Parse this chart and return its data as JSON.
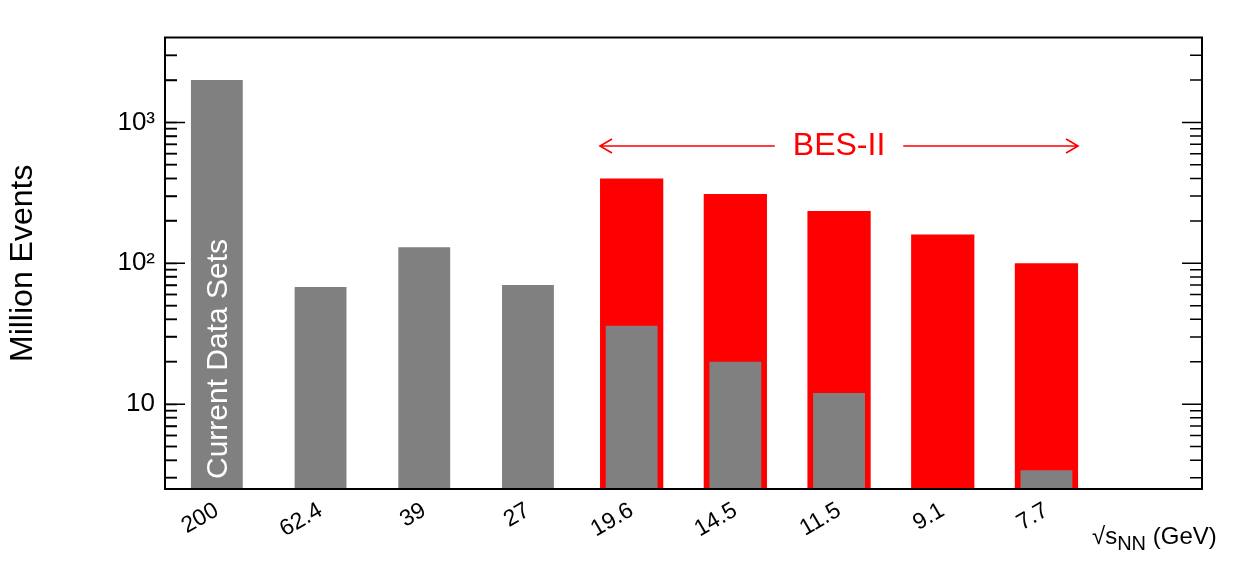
{
  "chart_data": {
    "type": "bar",
    "ylabel": "Million Events",
    "xlabel": "√s$_{NN}$ (GeV)",
    "categories": [
      "200",
      "62.4",
      "39",
      "27",
      "19.6",
      "14.5",
      "11.5",
      "9.1",
      "7.7",
      null
    ],
    "series": [
      {
        "name": "BES-II",
        "color": "#ff0000",
        "values": [
          null,
          null,
          null,
          null,
          400,
          310,
          235,
          160,
          100,
          null
        ]
      },
      {
        "name": "Current Data Sets",
        "color": "#808080",
        "values": [
          2000,
          68,
          130,
          70,
          36,
          20,
          12,
          null,
          3.4,
          null
        ]
      }
    ],
    "log": "y",
    "ylim": [
      2.5,
      4000
    ],
    "yticks": [
      {
        "value": 3,
        "label": null
      },
      {
        "value": 4,
        "label": null
      },
      {
        "value": 5,
        "label": null
      },
      {
        "value": 6,
        "label": null
      },
      {
        "value": 7,
        "label": null
      },
      {
        "value": 8,
        "label": null
      },
      {
        "value": 9,
        "label": null
      },
      10,
      {
        "value": 20,
        "label": null
      },
      {
        "value": 30,
        "label": null
      },
      {
        "value": 40,
        "label": null
      },
      {
        "value": 50,
        "label": null
      },
      {
        "value": 60,
        "label": null
      },
      {
        "value": 70,
        "label": null
      },
      {
        "value": 80,
        "label": null
      },
      {
        "value": 90,
        "label": null
      },
      {
        "value": 100,
        "label": "10²"
      },
      {
        "value": 200,
        "label": null
      },
      {
        "value": 300,
        "label": null
      },
      {
        "value": 400,
        "label": null
      },
      {
        "value": 500,
        "label": null
      },
      {
        "value": 600,
        "label": null
      },
      {
        "value": 700,
        "label": null
      },
      {
        "value": 800,
        "label": null
      },
      {
        "value": 900,
        "label": null
      },
      {
        "value": 1000,
        "label": "10³"
      },
      {
        "value": 2000,
        "label": null
      },
      {
        "value": 3000,
        "label": null
      }
    ],
    "grid": false,
    "legend": false
  }
}
